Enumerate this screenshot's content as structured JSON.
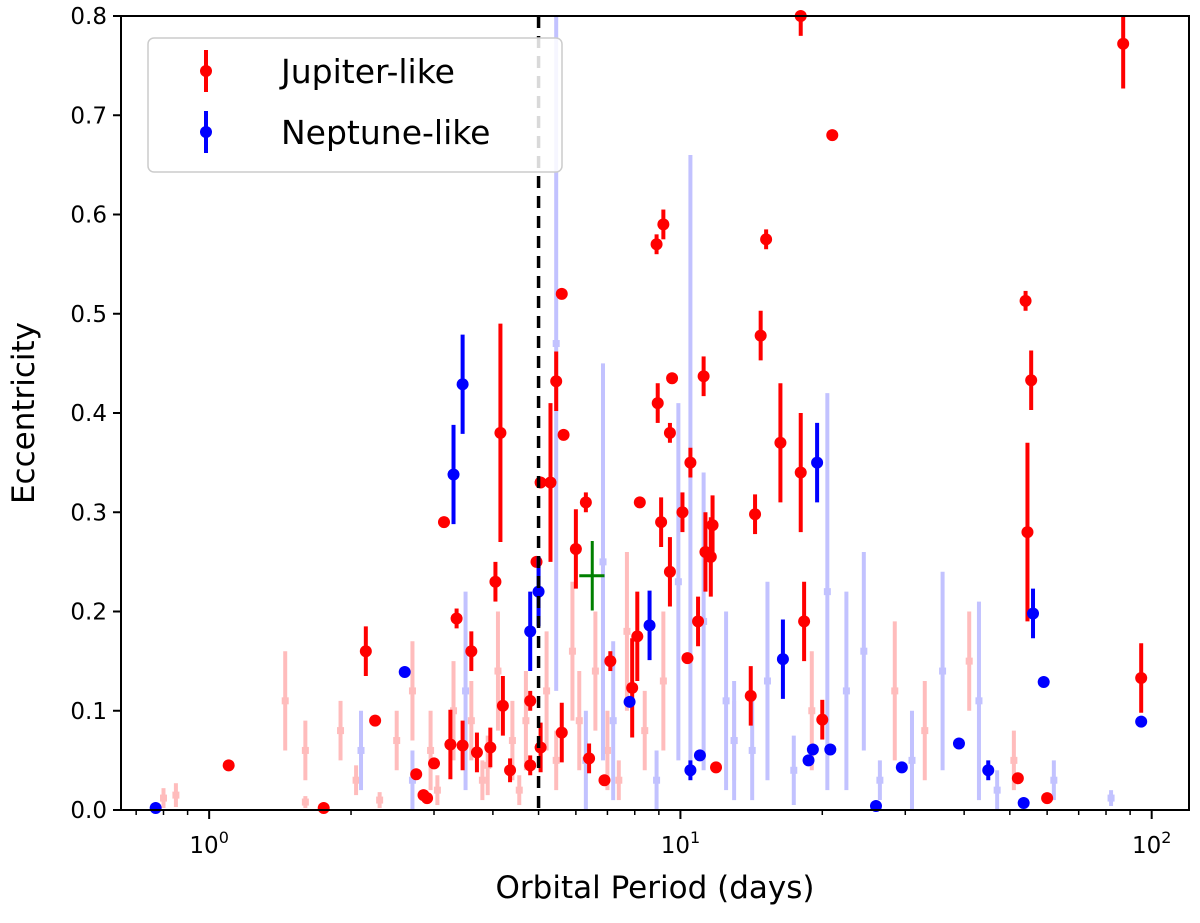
{
  "chart_data": {
    "type": "scatter",
    "xlabel": "Orbital Period (days)",
    "ylabel": "Eccentricity",
    "xscale": "log",
    "xlim": [
      0.65,
      120
    ],
    "ylim": [
      0,
      0.8
    ],
    "yticks": [
      "0.0",
      "0.1",
      "0.2",
      "0.3",
      "0.4",
      "0.5",
      "0.6",
      "0.7",
      "0.8"
    ],
    "xticks": [
      {
        "value": 1,
        "base": "10",
        "exp": "0"
      },
      {
        "value": 10,
        "base": "10",
        "exp": "1"
      },
      {
        "value": 100,
        "base": "10",
        "exp": "2"
      }
    ],
    "vline_x": 5,
    "legend": {
      "location": "upper-left",
      "entries": [
        {
          "label": "Jupiter-like",
          "color": "#ff0000"
        },
        {
          "label": "Neptune-like",
          "color": "#0000ff"
        }
      ]
    },
    "colors": {
      "jupiter": "#ff0000",
      "neptune": "#0000ff",
      "jupiter_faint": "#ffbcbc",
      "neptune_faint": "#c2c2ff",
      "highlight": "#008000"
    },
    "highlight_point": {
      "x": 6.5,
      "y": 0.236,
      "yerr": 0.035,
      "xerr": 0.4
    },
    "series": [
      {
        "name": "Jupiter-like",
        "points": [
          [
            2.15,
            0.16,
            0.025
          ],
          [
            1.1,
            0.045,
            0
          ],
          [
            2.25,
            0.09,
            0
          ],
          [
            1.75,
            0.002,
            0
          ],
          [
            3.15,
            0.29,
            0
          ],
          [
            3.35,
            0.193,
            0.01
          ],
          [
            3.6,
            0.16,
            0.02
          ],
          [
            4.05,
            0.23,
            0.02
          ],
          [
            4.15,
            0.38,
            0.11
          ],
          [
            4.8,
            0.11,
            0.01
          ],
          [
            4.95,
            0.25,
            0
          ],
          [
            5.05,
            0.33,
            0
          ],
          [
            5.3,
            0.33,
            0.08
          ],
          [
            5.45,
            0.432,
            0.03
          ],
          [
            5.6,
            0.52,
            0
          ],
          [
            5.65,
            0.378,
            0
          ],
          [
            6.0,
            0.263,
            0.04
          ],
          [
            6.3,
            0.31,
            0.01
          ],
          [
            7.1,
            0.15,
            0.01
          ],
          [
            8.2,
            0.31,
            0
          ],
          [
            8.9,
            0.57,
            0.01
          ],
          [
            9.2,
            0.59,
            0.015
          ],
          [
            8.95,
            0.41,
            0.02
          ],
          [
            9.6,
            0.435,
            0
          ],
          [
            9.5,
            0.38,
            0.01
          ],
          [
            9.1,
            0.29,
            0.025
          ],
          [
            9.5,
            0.24,
            0.035
          ],
          [
            10.1,
            0.3,
            0.02
          ],
          [
            10.5,
            0.35,
            0.015
          ],
          [
            11.2,
            0.437,
            0.02
          ],
          [
            11.3,
            0.26,
            0.04
          ],
          [
            11.7,
            0.287,
            0.03
          ],
          [
            11.6,
            0.255,
            0.04
          ],
          [
            10.9,
            0.19,
            0.025
          ],
          [
            10.35,
            0.153,
            0
          ],
          [
            11.9,
            0.043,
            0
          ],
          [
            14.4,
            0.298,
            0.02
          ],
          [
            14.8,
            0.478,
            0.025
          ],
          [
            15.2,
            0.575,
            0.01
          ],
          [
            16.3,
            0.37,
            0.06
          ],
          [
            18.0,
            0.34,
            0.06
          ],
          [
            18.3,
            0.19,
            0.04
          ],
          [
            18.0,
            0.8,
            0.02
          ],
          [
            21.0,
            0.68,
            0
          ],
          [
            14.1,
            0.115,
            0.03
          ],
          [
            20.0,
            0.091,
            0.02
          ],
          [
            8.1,
            0.175,
            0.045
          ],
          [
            7.9,
            0.123,
            0.05
          ],
          [
            3.25,
            0.066,
            0.035
          ],
          [
            3.45,
            0.065,
            0.025
          ],
          [
            3.7,
            0.058,
            0.02
          ],
          [
            3.95,
            0.063,
            0.02
          ],
          [
            4.2,
            0.105,
            0.03
          ],
          [
            4.35,
            0.04,
            0.012
          ],
          [
            4.8,
            0.045,
            0.01
          ],
          [
            5.05,
            0.063,
            0.025
          ],
          [
            5.6,
            0.078,
            0.03
          ],
          [
            6.4,
            0.052,
            0.015
          ],
          [
            6.9,
            0.03,
            0
          ],
          [
            2.75,
            0.036,
            0
          ],
          [
            2.85,
            0.015,
            0
          ],
          [
            3.0,
            0.047,
            0
          ],
          [
            2.9,
            0.012,
            0
          ],
          [
            54.0,
            0.513,
            0.01
          ],
          [
            55.5,
            0.433,
            0.03
          ],
          [
            54.5,
            0.28,
            0.09
          ],
          [
            52.0,
            0.032,
            0
          ],
          [
            60.0,
            0.012,
            0
          ],
          [
            87.0,
            0.772,
            0.045
          ],
          [
            95.0,
            0.133,
            0.035
          ]
        ]
      },
      {
        "name": "Neptune-like",
        "points": [
          [
            0.77,
            0.002,
            0
          ],
          [
            2.6,
            0.139,
            0
          ],
          [
            3.3,
            0.338,
            0.05
          ],
          [
            3.45,
            0.429,
            0.05
          ],
          [
            4.8,
            0.18,
            0.04
          ],
          [
            5.0,
            0.22,
            0.035
          ],
          [
            8.6,
            0.186,
            0.035
          ],
          [
            7.8,
            0.109,
            0
          ],
          [
            10.5,
            0.04,
            0.01
          ],
          [
            11.0,
            0.055,
            0
          ],
          [
            16.5,
            0.152,
            0.04
          ],
          [
            19.5,
            0.35,
            0.04
          ],
          [
            18.7,
            0.05,
            0
          ],
          [
            19.1,
            0.061,
            0
          ],
          [
            20.8,
            0.061,
            0
          ],
          [
            26.0,
            0.004,
            0
          ],
          [
            29.5,
            0.043,
            0
          ],
          [
            39.0,
            0.067,
            0
          ],
          [
            45.0,
            0.04,
            0.01
          ],
          [
            53.5,
            0.007,
            0
          ],
          [
            56.0,
            0.198,
            0.025
          ],
          [
            59.0,
            0.129,
            0
          ],
          [
            95.0,
            0.089,
            0
          ]
        ]
      },
      {
        "name": "Jupiter-like (faint)",
        "points": [
          [
            0.8,
            0.012,
            0.01
          ],
          [
            0.85,
            0.015,
            0.012
          ],
          [
            1.45,
            0.11,
            0.05
          ],
          [
            1.6,
            0.06,
            0.03
          ],
          [
            1.6,
            0.008,
            0.006
          ],
          [
            1.9,
            0.08,
            0.03
          ],
          [
            2.05,
            0.03,
            0.015
          ],
          [
            2.3,
            0.01,
            0.008
          ],
          [
            2.7,
            0.12,
            0.05
          ],
          [
            2.95,
            0.06,
            0.04
          ],
          [
            3.05,
            0.02,
            0.015
          ],
          [
            3.6,
            0.09,
            0.04
          ],
          [
            3.8,
            0.03,
            0.02
          ],
          [
            4.1,
            0.14,
            0.06
          ],
          [
            4.4,
            0.07,
            0.04
          ],
          [
            4.55,
            0.02,
            0.015
          ],
          [
            5.2,
            0.12,
            0.06
          ],
          [
            5.45,
            0.05,
            0.03
          ],
          [
            5.9,
            0.16,
            0.07
          ],
          [
            6.1,
            0.09,
            0.05
          ],
          [
            6.6,
            0.14,
            0.06
          ],
          [
            7.0,
            0.06,
            0.04
          ],
          [
            7.4,
            0.03,
            0.02
          ],
          [
            7.7,
            0.18,
            0.08
          ],
          [
            8.4,
            0.08,
            0.04
          ],
          [
            9.2,
            0.13,
            0.07
          ],
          [
            13.0,
            0.07,
            0.04
          ],
          [
            19.0,
            0.1,
            0.06
          ],
          [
            28.5,
            0.12,
            0.07
          ],
          [
            33.0,
            0.08,
            0.05
          ],
          [
            41.0,
            0.15,
            0.05
          ],
          [
            51.0,
            0.05,
            0.03
          ],
          [
            2.5,
            0.07,
            0.03
          ],
          [
            3.3,
            0.1,
            0.05
          ],
          [
            3.9,
            0.045,
            0.03
          ],
          [
            4.7,
            0.09,
            0.05
          ]
        ]
      },
      {
        "name": "Neptune-like (faint)",
        "points": [
          [
            5.45,
            0.47,
            0.35
          ],
          [
            6.85,
            0.25,
            0.2
          ],
          [
            9.9,
            0.23,
            0.18
          ],
          [
            10.5,
            0.35,
            0.31
          ],
          [
            11.2,
            0.19,
            0.15
          ],
          [
            12.5,
            0.11,
            0.09
          ],
          [
            13.0,
            0.07,
            0.06
          ],
          [
            15.3,
            0.13,
            0.1
          ],
          [
            17.4,
            0.04,
            0.035
          ],
          [
            20.5,
            0.22,
            0.2
          ],
          [
            22.5,
            0.12,
            0.1
          ],
          [
            24.5,
            0.16,
            0.1
          ],
          [
            31.0,
            0.05,
            0.05
          ],
          [
            36.0,
            0.14,
            0.1
          ],
          [
            43.0,
            0.11,
            0.1
          ],
          [
            47.0,
            0.02,
            0.02
          ],
          [
            62.0,
            0.03,
            0.02
          ],
          [
            82.0,
            0.012,
            0.008
          ],
          [
            2.1,
            0.06,
            0.04
          ],
          [
            2.7,
            0.03,
            0.03
          ],
          [
            3.5,
            0.12,
            0.1
          ],
          [
            6.3,
            0.05,
            0.05
          ],
          [
            7.2,
            0.09,
            0.08
          ],
          [
            8.9,
            0.03,
            0.03
          ],
          [
            14.2,
            0.06,
            0.05
          ],
          [
            26.5,
            0.03,
            0.02
          ]
        ]
      }
    ]
  }
}
